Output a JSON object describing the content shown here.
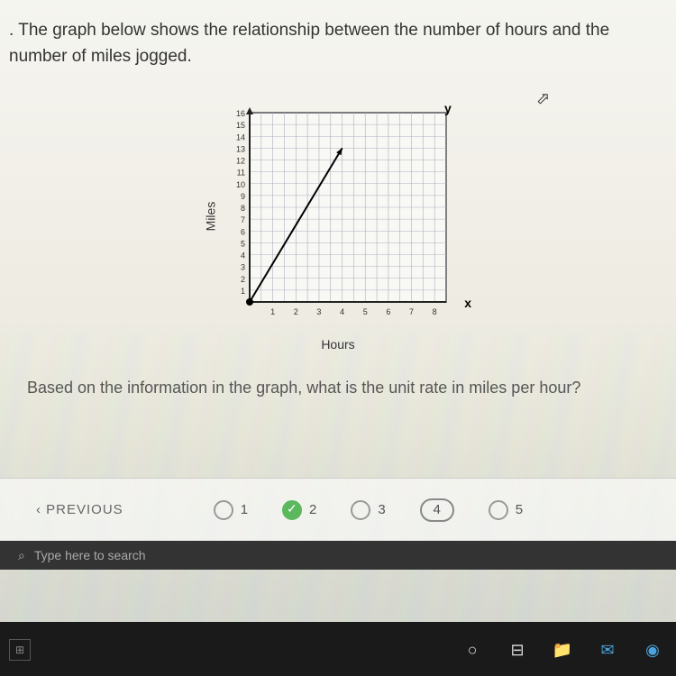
{
  "question": {
    "prefix": ". ",
    "line1": "The graph below shows the relationship between the number of hours and the",
    "line2": "number of miles jogged."
  },
  "sub_question": "Based on the information in the graph, what is the unit rate in miles per hour?",
  "chart": {
    "type": "line",
    "y_axis_label": "Miles",
    "x_axis_label": "Hours",
    "y_marker": "y",
    "x_marker": "x",
    "y_ticks": [
      1,
      2,
      3,
      4,
      5,
      6,
      7,
      8,
      9,
      10,
      11,
      12,
      13,
      14,
      15,
      16
    ],
    "x_ticks": [
      1,
      2,
      3,
      4,
      5,
      6,
      7,
      8
    ],
    "ylim": [
      0,
      16
    ],
    "xlim": [
      0,
      8.5
    ],
    "grid_color": "#b0b0c0",
    "border_color": "#222222",
    "line_color": "#000000",
    "background_color": "#f8f8f5",
    "line_width": 2,
    "data_points": [
      [
        0,
        0
      ],
      [
        4,
        13
      ]
    ],
    "arrow_end": true,
    "start_dot": true
  },
  "nav": {
    "previous_label": "‹  PREVIOUS",
    "pages": [
      {
        "num": "1",
        "state": "empty"
      },
      {
        "num": "2",
        "state": "checked"
      },
      {
        "num": "3",
        "state": "empty"
      },
      {
        "num": "4",
        "state": "current"
      },
      {
        "num": "5",
        "state": "empty"
      }
    ]
  },
  "taskbar": {
    "search_placeholder": "Type here to search",
    "icons": {
      "start": "⊞",
      "search": "⌕",
      "cortana": "○",
      "taskview": "⊟",
      "folder": "📁",
      "mail": "✉",
      "edge": "◉"
    }
  }
}
